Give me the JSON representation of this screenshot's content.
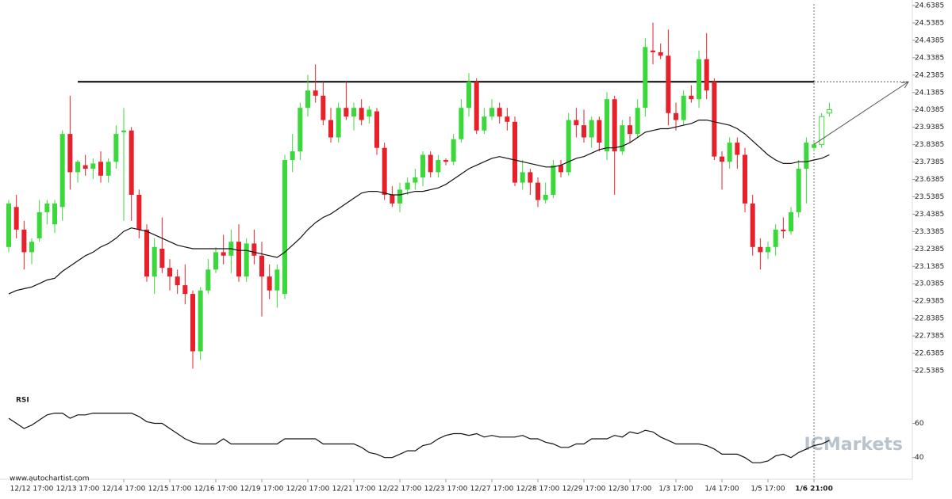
{
  "chart_data": {
    "type": "candlestick",
    "categories": [
      null,
      null,
      null,
      "12/12 17:00",
      null,
      null,
      null,
      null,
      null,
      "12/13 17:00",
      null,
      null,
      null,
      null,
      null,
      "12/14 17:00",
      null,
      null,
      null,
      null,
      null,
      "12/15 17:00",
      null,
      null,
      null,
      null,
      null,
      "12/16 17:00",
      null,
      null,
      null,
      null,
      null,
      "12/19 17:00",
      null,
      null,
      null,
      null,
      null,
      "12/20 17:00",
      null,
      null,
      null,
      null,
      null,
      "12/21 17:00",
      null,
      null,
      null,
      null,
      null,
      "12/22 17:00",
      null,
      null,
      null,
      null,
      null,
      "12/23 17:00",
      null,
      null,
      null,
      null,
      null,
      "12/27 17:00",
      null,
      null,
      null,
      null,
      null,
      "12/28 17:00",
      null,
      null,
      null,
      null,
      null,
      "12/29 17:00",
      null,
      null,
      null,
      null,
      null,
      "12/30 17:00",
      null,
      null,
      null,
      null,
      null,
      "1/3 17:00",
      null,
      null,
      null,
      null,
      null,
      "1/4 17:00",
      null,
      null,
      null,
      null,
      null,
      "1/5 17:00",
      null,
      null,
      null,
      null,
      null,
      "1/6 21:00",
      null,
      null
    ],
    "open": [
      23.25,
      23.48,
      23.35,
      23.22,
      23.3,
      23.45,
      23.38,
      23.48,
      23.9,
      23.68,
      23.72,
      23.7,
      23.74,
      23.66,
      23.74,
      23.91,
      23.92,
      23.55,
      23.35,
      23.08,
      23.24,
      23.13,
      23.08,
      23.03,
      22.98,
      22.65,
      23.0,
      23.12,
      23.22,
      23.2,
      23.28,
      23.08,
      23.27,
      23.2,
      23.08,
      23.0,
      22.98,
      23.75,
      23.8,
      24.05,
      24.15,
      24.12,
      23.98,
      23.88,
      24.05,
      24.0,
      24.05,
      24.0,
      24.03,
      23.82,
      23.55,
      23.5,
      23.58,
      23.62,
      23.65,
      23.78,
      23.68,
      23.75,
      23.74,
      23.87,
      24.05,
      24.2,
      23.92,
      24.0,
      24.05,
      24.0,
      23.97,
      23.62,
      23.68,
      23.62,
      23.52,
      23.55,
      23.72,
      23.68,
      23.98,
      23.95,
      23.88,
      23.98,
      23.8,
      24.1,
      23.8,
      23.95,
      23.9,
      24.05,
      24.38,
      24.37,
      24.35,
      24.02,
      23.98,
      24.12,
      24.1,
      24.33,
      24.2,
      23.77,
      23.74,
      23.85,
      23.78,
      23.5,
      23.25,
      23.22,
      23.25,
      23.35,
      23.34,
      23.45,
      23.7,
      23.82,
      23.84,
      24.02
    ],
    "high": [
      23.52,
      23.55,
      23.4,
      23.3,
      23.52,
      23.52,
      23.52,
      23.92,
      24.12,
      23.75,
      23.78,
      23.76,
      23.8,
      23.76,
      23.95,
      24.05,
      23.94,
      23.58,
      23.38,
      23.3,
      23.42,
      23.18,
      23.12,
      23.15,
      23.0,
      23.02,
      23.18,
      23.25,
      23.32,
      23.35,
      23.38,
      23.3,
      23.35,
      23.28,
      23.15,
      23.15,
      23.78,
      23.9,
      24.08,
      24.24,
      24.3,
      24.2,
      24.05,
      24.08,
      24.2,
      24.08,
      24.1,
      24.06,
      24.05,
      23.85,
      23.6,
      23.62,
      23.65,
      23.7,
      23.8,
      23.8,
      23.78,
      23.76,
      23.9,
      24.1,
      24.25,
      24.22,
      24.05,
      24.1,
      24.08,
      24.05,
      24.0,
      23.75,
      23.7,
      23.65,
      23.62,
      23.75,
      23.75,
      24.02,
      24.05,
      24.04,
      24.0,
      24.0,
      24.14,
      24.12,
      23.98,
      24.0,
      24.1,
      24.45,
      24.54,
      24.42,
      24.5,
      24.08,
      24.15,
      24.18,
      24.38,
      24.48,
      24.22,
      23.8,
      23.88,
      23.88,
      23.82,
      23.55,
      23.3,
      23.28,
      23.38,
      23.42,
      23.48,
      23.75,
      23.88,
      23.86,
      24.02,
      24.08
    ],
    "low": [
      23.22,
      23.3,
      23.12,
      23.15,
      23.28,
      23.38,
      23.33,
      23.4,
      23.58,
      23.62,
      23.66,
      23.64,
      23.62,
      23.62,
      23.7,
      23.4,
      23.4,
      23.3,
      23.05,
      22.98,
      23.1,
      23.0,
      22.98,
      22.92,
      22.55,
      22.6,
      22.98,
      23.1,
      23.15,
      23.1,
      23.05,
      23.05,
      23.15,
      22.85,
      22.95,
      22.9,
      22.95,
      23.68,
      23.75,
      24.0,
      24.08,
      23.95,
      23.85,
      23.85,
      23.98,
      23.92,
      23.95,
      23.96,
      23.78,
      23.52,
      23.48,
      23.45,
      23.55,
      23.58,
      23.6,
      23.65,
      23.65,
      23.72,
      23.72,
      23.85,
      24.0,
      23.9,
      23.9,
      23.98,
      23.96,
      23.92,
      23.6,
      23.58,
      23.55,
      23.48,
      23.5,
      23.53,
      23.65,
      23.66,
      23.88,
      23.85,
      23.82,
      23.8,
      23.75,
      23.55,
      23.78,
      23.85,
      23.88,
      24.0,
      24.3,
      24.33,
      23.95,
      23.92,
      23.95,
      24.08,
      24.05,
      24.1,
      23.75,
      23.58,
      23.7,
      23.7,
      23.45,
      23.2,
      23.12,
      23.18,
      23.2,
      23.3,
      23.32,
      23.42,
      23.5,
      23.8,
      23.82,
      24.0
    ],
    "close": [
      23.5,
      23.35,
      23.22,
      23.28,
      23.45,
      23.5,
      23.5,
      23.9,
      23.68,
      23.74,
      23.7,
      23.73,
      23.66,
      23.74,
      23.9,
      23.92,
      23.55,
      23.35,
      23.08,
      23.25,
      23.13,
      23.08,
      23.03,
      22.98,
      22.65,
      23.0,
      23.12,
      23.22,
      23.2,
      23.28,
      23.08,
      23.27,
      23.2,
      23.08,
      23.0,
      23.12,
      23.75,
      23.8,
      24.05,
      24.15,
      24.12,
      23.98,
      23.88,
      24.05,
      24.0,
      24.05,
      23.98,
      24.04,
      23.82,
      23.55,
      23.5,
      23.58,
      23.62,
      23.65,
      23.78,
      23.68,
      23.75,
      23.74,
      23.87,
      24.05,
      24.2,
      23.92,
      24.0,
      24.05,
      24.0,
      23.97,
      23.62,
      23.68,
      23.62,
      23.52,
      23.55,
      23.72,
      23.68,
      23.98,
      23.95,
      23.88,
      23.98,
      23.85,
      24.1,
      23.8,
      23.95,
      23.9,
      24.05,
      24.4,
      24.37,
      24.35,
      24.02,
      23.98,
      24.12,
      24.1,
      24.33,
      24.15,
      23.77,
      23.74,
      23.85,
      23.78,
      23.5,
      23.25,
      23.22,
      23.25,
      23.35,
      23.34,
      23.45,
      23.7,
      23.85,
      23.84,
      24.0,
      24.04
    ],
    "up_color": "#3ad83a",
    "down_color": "#e8202a",
    "ylim": [
      22.5385,
      24.6385
    ],
    "yticks": [
      22.5385,
      22.6385,
      22.7385,
      22.8385,
      22.9385,
      23.0385,
      23.1385,
      23.2385,
      23.3385,
      23.4385,
      23.5385,
      23.6385,
      23.7385,
      23.8385,
      23.9385,
      24.0385,
      24.1385,
      24.2385,
      24.3385,
      24.4385,
      24.5385,
      24.6385
    ],
    "moving_average": {
      "color": "#111111",
      "values": [
        22.98,
        23.0,
        23.01,
        23.02,
        23.04,
        23.06,
        23.07,
        23.11,
        23.14,
        23.17,
        23.2,
        23.22,
        23.25,
        23.27,
        23.3,
        23.34,
        23.36,
        23.35,
        23.34,
        23.32,
        23.3,
        23.28,
        23.26,
        23.25,
        23.24,
        23.24,
        23.24,
        23.24,
        23.24,
        23.24,
        23.23,
        23.23,
        23.22,
        23.21,
        23.2,
        23.19,
        23.22,
        23.26,
        23.3,
        23.35,
        23.39,
        23.42,
        23.44,
        23.47,
        23.5,
        23.53,
        23.56,
        23.57,
        23.57,
        23.56,
        23.55,
        23.55,
        23.56,
        23.57,
        23.57,
        23.58,
        23.59,
        23.61,
        23.64,
        23.67,
        23.7,
        23.72,
        23.74,
        23.76,
        23.77,
        23.76,
        23.75,
        23.74,
        23.73,
        23.72,
        23.71,
        23.71,
        23.72,
        23.74,
        23.76,
        23.77,
        23.79,
        23.81,
        23.82,
        23.82,
        23.83,
        23.85,
        23.88,
        23.91,
        23.92,
        23.93,
        23.93,
        23.94,
        23.95,
        23.96,
        23.98,
        23.98,
        23.97,
        23.96,
        23.95,
        23.93,
        23.9,
        23.86,
        23.82,
        23.78,
        23.75,
        23.73,
        23.73,
        23.74,
        23.74,
        23.75,
        23.76,
        23.78
      ]
    },
    "resistance": {
      "value": 24.2,
      "color": "#000000"
    },
    "rsi": {
      "title": "RSI",
      "color": "#111111",
      "ylim": [
        32,
        76
      ],
      "yticks": [
        40,
        60
      ],
      "values": [
        63,
        60,
        57,
        59,
        62,
        65,
        66,
        66,
        63,
        65,
        65,
        66,
        66,
        66,
        66,
        66,
        66,
        64,
        61,
        60,
        60,
        57,
        54,
        51,
        49,
        48,
        48,
        48,
        51,
        48,
        48,
        48,
        48,
        48,
        48,
        48,
        51,
        51,
        51,
        51,
        51,
        48,
        48,
        48,
        48,
        48,
        46,
        43,
        42,
        40,
        40,
        42,
        44,
        44,
        47,
        48,
        51,
        53,
        54,
        54,
        53,
        54,
        52,
        53,
        52,
        52,
        52,
        53,
        51,
        51,
        49,
        48,
        46,
        46,
        48,
        48,
        51,
        51,
        51,
        53,
        52,
        55,
        54,
        56,
        55,
        52,
        50,
        48,
        48,
        48,
        48,
        47,
        45,
        42,
        42,
        42,
        40,
        37,
        37,
        38,
        41,
        42,
        40,
        43,
        45,
        47,
        48,
        50
      ]
    },
    "source": "www.autochartist.com",
    "watermark": "ICMarkets"
  }
}
